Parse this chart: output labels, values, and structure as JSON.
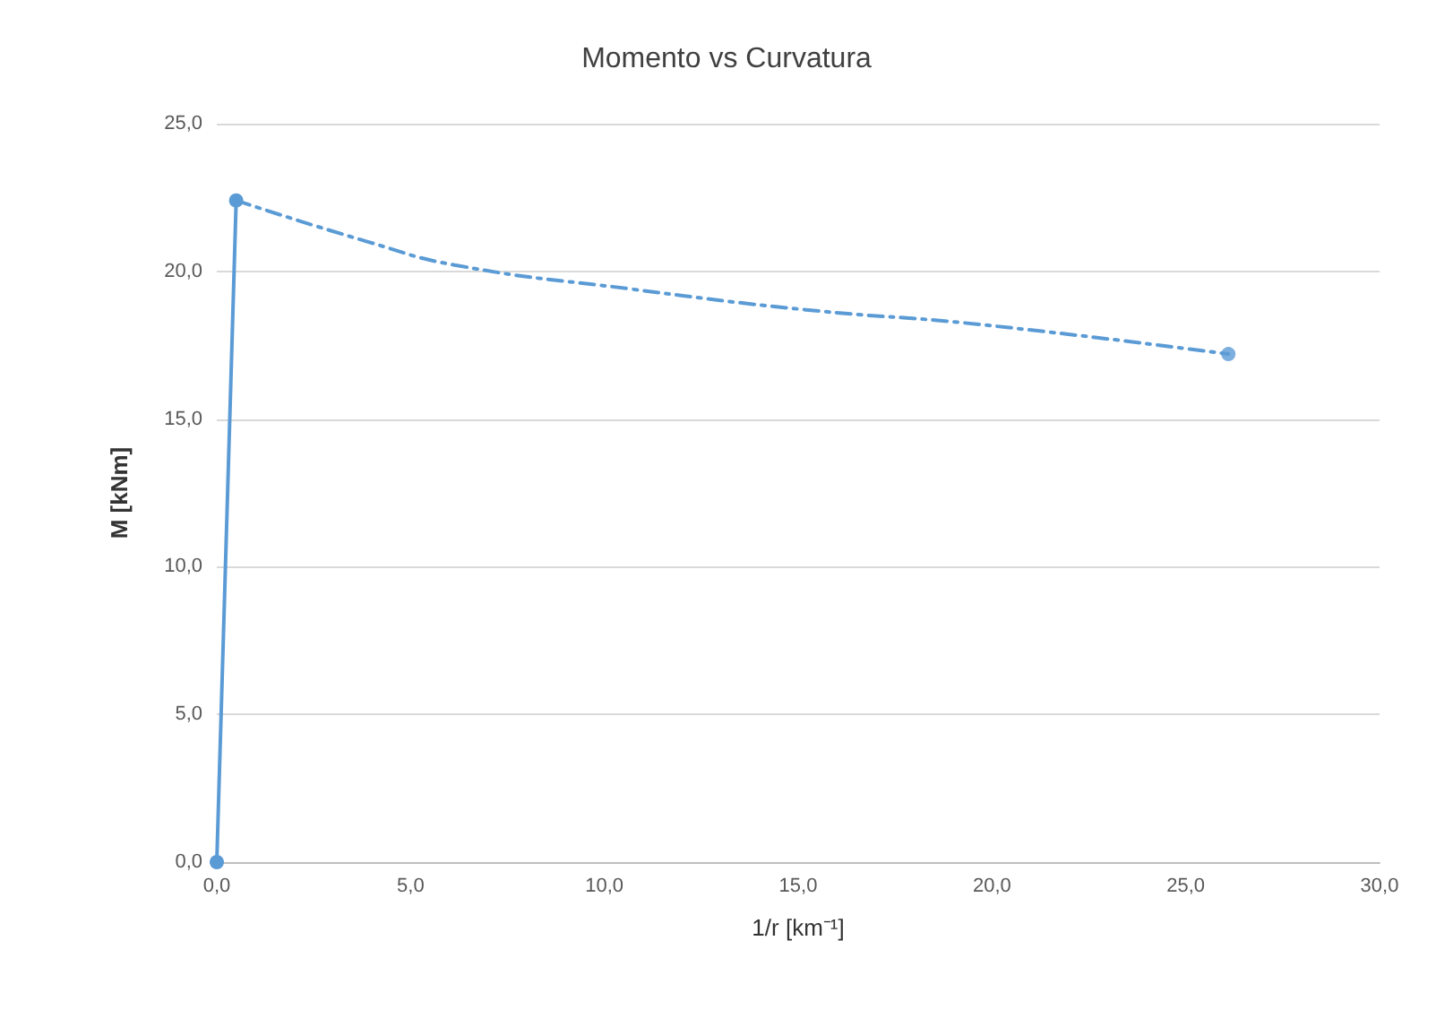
{
  "chart_data": {
    "type": "line",
    "title": "Momento vs Curvatura",
    "xlabel": "1/r [km⁻¹]",
    "ylabel": "M [kNm]",
    "series": [
      {
        "color": "#5b9bd5",
        "x": [
          0,
          0.5
        ],
        "values": [
          0,
          22.4
        ],
        "marker": "circle",
        "line_style": "solid"
      },
      {
        "color": "#5b9bd5",
        "x": [
          0.5,
          3.9,
          6.2,
          10.7,
          15.2,
          19.7,
          26.1
        ],
        "values": [
          22.4,
          21.0,
          20.2,
          19.4,
          18.7,
          18.2,
          17.2
        ],
        "marker": "none",
        "line_style": "dashed"
      },
      {
        "type": "scatter",
        "color": "#5b9bd5",
        "x": [
          26.1
        ],
        "values": [
          17.2
        ],
        "marker": "circle"
      }
    ],
    "xlim": [
      0,
      30
    ],
    "xticks": [
      {
        "value": 0,
        "label": "0,0"
      },
      {
        "value": 5,
        "label": "5,0"
      },
      {
        "value": 10,
        "label": "10,0"
      },
      {
        "value": 15,
        "label": "15,0"
      },
      {
        "value": 20,
        "label": "20,0"
      },
      {
        "value": 25,
        "label": "25,0"
      },
      {
        "value": 30,
        "label": "30,0"
      }
    ],
    "ylim": [
      0,
      25
    ],
    "yticks": [
      {
        "value": 0,
        "label": "0,0"
      },
      {
        "value": 5,
        "label": "5,0"
      },
      {
        "value": 10,
        "label": "10,0"
      },
      {
        "value": 15,
        "label": "15,0"
      },
      {
        "value": 20,
        "label": "20,0"
      },
      {
        "value": 25,
        "label": "25,0"
      }
    ],
    "grid": "y"
  }
}
